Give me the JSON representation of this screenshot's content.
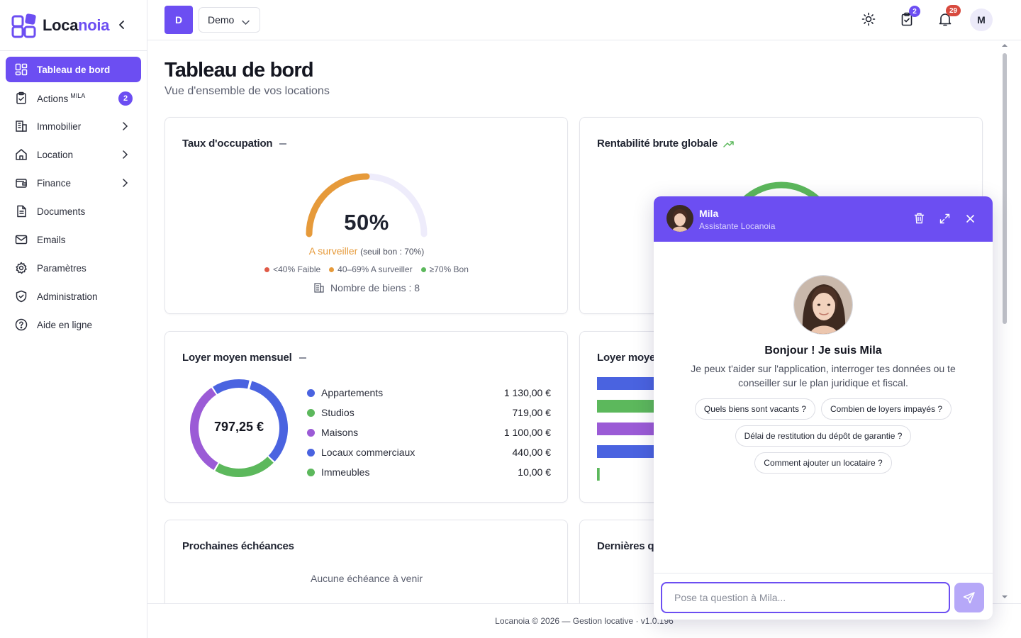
{
  "brand": {
    "name_main": "Loca",
    "name_accent": "noia"
  },
  "sidebar": {
    "items": [
      {
        "label": "Tableau de bord",
        "icon": "dashboard-icon"
      },
      {
        "label": "Actions",
        "sup": "MILA",
        "badge": "2",
        "icon": "clipboard-check-icon"
      },
      {
        "label": "Immobilier",
        "icon": "building-icon"
      },
      {
        "label": "Location",
        "icon": "home-icon"
      },
      {
        "label": "Finance",
        "icon": "wallet-icon"
      },
      {
        "label": "Documents",
        "icon": "document-icon"
      },
      {
        "label": "Emails",
        "icon": "mail-icon"
      },
      {
        "label": "Paramètres",
        "icon": "gear-icon"
      },
      {
        "label": "Administration",
        "icon": "shield-icon"
      },
      {
        "label": "Aide en ligne",
        "icon": "help-icon"
      }
    ]
  },
  "topbar": {
    "org_initial": "D",
    "org_name": "Demo",
    "tasks_badge": "2",
    "notifications_badge": "29",
    "user_initial": "M"
  },
  "page": {
    "title": "Tableau de bord",
    "subtitle": "Vue d'ensemble de vos locations"
  },
  "occupancy": {
    "title": "Taux d'occupation",
    "value": "50%",
    "fraction": 0.5,
    "status": "A surveiller",
    "threshold": "(seuil bon : 70%)",
    "legend": [
      {
        "label": "<40% Faible",
        "color": "#e05a47"
      },
      {
        "label": "40–69% A surveiller",
        "color": "#e69a3a"
      },
      {
        "label": "≥70% Bon",
        "color": "#5cb85c"
      }
    ],
    "properties_count": "Nombre de biens : 8",
    "color": "#e69a3a"
  },
  "profitability": {
    "title": "Rentabilité brute globale",
    "color": "#5cb85c"
  },
  "avg_rent": {
    "title": "Loyer moyen mensuel",
    "center": "797,25 €",
    "rows": [
      {
        "label": "Appartements",
        "amount": "1 130,00 €",
        "value": 1130,
        "color": "#4a63e0"
      },
      {
        "label": "Studios",
        "amount": "719,00 €",
        "value": 719,
        "color": "#5cb85c"
      },
      {
        "label": "Maisons",
        "amount": "1 100,00 €",
        "value": 1100,
        "color": "#9b5bd6"
      },
      {
        "label": "Locaux commerciaux",
        "amount": "440,00 €",
        "value": 440,
        "color": "#4a63e0"
      },
      {
        "label": "Immeubles",
        "amount": "10,00 €",
        "value": 10,
        "color": "#5cb85c"
      }
    ]
  },
  "avg_rent_by_type": {
    "title": "Loyer moye"
  },
  "upcoming": {
    "title": "Prochaines échéances",
    "empty": "Aucune échéance à venir"
  },
  "latest": {
    "title": "Dernières q"
  },
  "footer": {
    "text": "Locanoia © 2026 — Gestion locative · v1.0.196"
  },
  "chat": {
    "name": "Mila",
    "subtitle": "Assistante Locanoia",
    "greeting": "Bonjour ! Je suis Mila",
    "intro": "Je peux t'aider sur l'application, interroger tes données ou te conseiller sur le plan juridique et fiscal.",
    "suggestions": [
      "Quels biens sont vacants ?",
      "Combien de loyers impayés ?",
      "Délai de restitution du dépôt de garantie ?",
      "Comment ajouter un locataire ?"
    ],
    "input_placeholder": "Pose ta question à Mila..."
  }
}
